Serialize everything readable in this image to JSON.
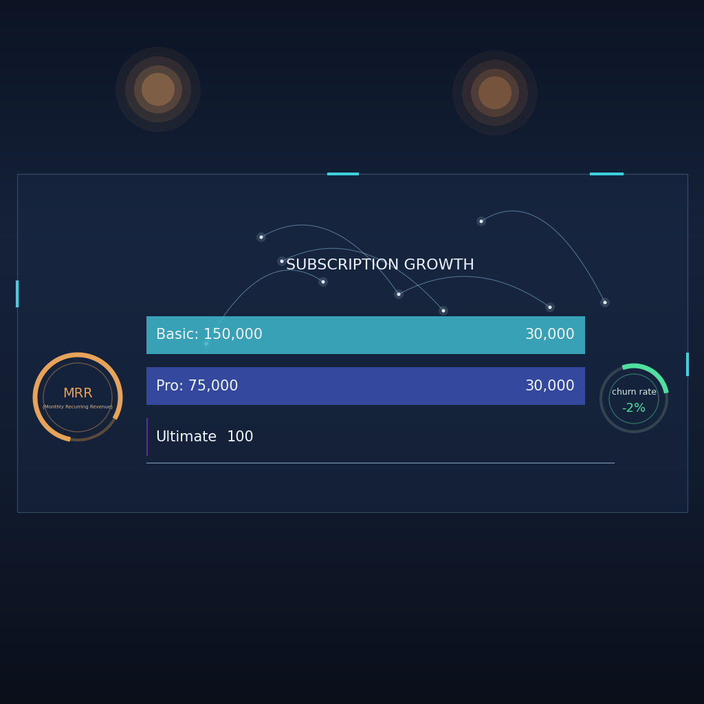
{
  "chart_data": {
    "type": "bar",
    "orientation": "horizontal",
    "title": "SUBSCRIPTION GROWTH",
    "categories": [
      "Basic: 150,000",
      "Pro: 75,000",
      "Ultimate"
    ],
    "values": [
      30000,
      30000,
      100
    ],
    "value_labels": [
      "30,000",
      "30,000",
      "100"
    ],
    "colors": [
      "#3fb8cc",
      "#3a4fb0",
      "#6a2fb8"
    ],
    "xlim": [
      0,
      32000
    ],
    "xticks": [],
    "data_labels": true,
    "tick_labels": false,
    "widgets": [
      {
        "title": "MRR",
        "subtitle": "(Monthly Recurring Revenue)"
      },
      {
        "title": "churn rate",
        "value": -2,
        "value_label": "-2%"
      }
    ]
  }
}
